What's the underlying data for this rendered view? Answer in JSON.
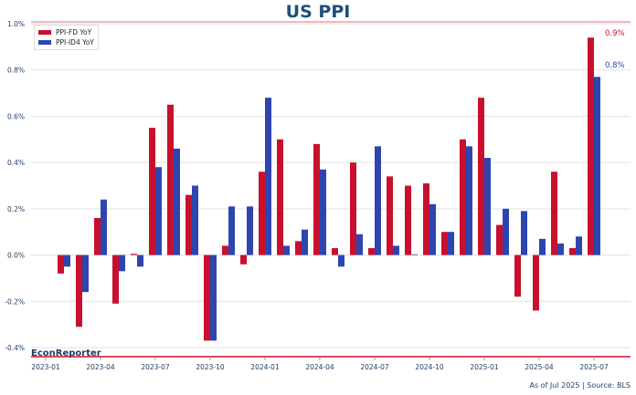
{
  "chart_data": {
    "type": "bar",
    "title": "US PPI",
    "categories": [
      "2023-02",
      "2023-03",
      "2023-04",
      "2023-05",
      "2023-06",
      "2023-07",
      "2023-08",
      "2023-09",
      "2023-10",
      "2023-11",
      "2023-12",
      "2024-01",
      "2024-02",
      "2024-03",
      "2024-04",
      "2024-05",
      "2024-06",
      "2024-07",
      "2024-08",
      "2024-09",
      "2024-10",
      "2024-11",
      "2024-12",
      "2025-01",
      "2025-02",
      "2025-03",
      "2025-04",
      "2025-05",
      "2025-06",
      "2025-07"
    ],
    "x_ticks": [
      "2023-01",
      "2023-04",
      "2023-07",
      "2023-10",
      "2024-01",
      "2024-04",
      "2024-07",
      "2024-10",
      "2025-01",
      "2025-04",
      "2025-07"
    ],
    "y_ticks": [
      "-0.4%",
      "-0.2%",
      "0.0%",
      "0.2%",
      "0.4%",
      "0.6%",
      "0.8%",
      "1.0%"
    ],
    "ylim": [
      -0.4,
      1.0
    ],
    "yunit": "%",
    "grid": true,
    "legend": "top-left",
    "series": [
      {
        "name": "PPI-FD YoY",
        "color": "#c8102e",
        "values": [
          -0.08,
          -0.31,
          0.16,
          -0.21,
          0.005,
          0.55,
          0.65,
          0.26,
          -0.37,
          0.04,
          -0.04,
          0.36,
          0.5,
          0.06,
          0.48,
          0.03,
          0.4,
          0.03,
          0.34,
          0.3,
          0.31,
          0.1,
          0.5,
          0.68,
          0.13,
          -0.18,
          -0.24,
          0.36,
          0.03,
          0.94
        ],
        "end_label": "0.9%"
      },
      {
        "name": "PPI-ID4 YoY",
        "color": "#2e45b0",
        "values": [
          -0.05,
          -0.16,
          0.24,
          -0.07,
          -0.05,
          0.38,
          0.46,
          0.3,
          -0.37,
          0.21,
          0.21,
          0.68,
          0.04,
          0.11,
          0.37,
          -0.05,
          0.09,
          0.47,
          0.04,
          0.003,
          0.22,
          0.1,
          0.47,
          0.42,
          0.2,
          0.19,
          0.07,
          0.05,
          0.08,
          0.77
        ],
        "end_label": "0.8%"
      }
    ]
  },
  "brand": "EconReporter",
  "source": "As of Jul 2025 | Source: BLS"
}
